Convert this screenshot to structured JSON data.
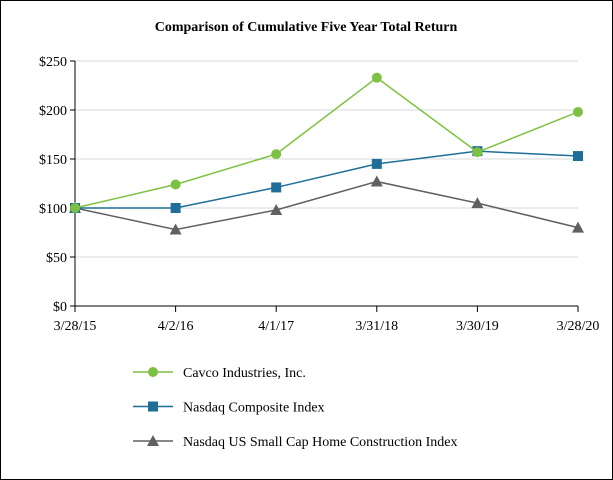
{
  "chart_data": {
    "type": "line",
    "title": "Comparison of Cumulative Five Year Total Return",
    "xlabel": "",
    "ylabel": "",
    "categories": [
      "3/28/15",
      "4/2/16",
      "4/1/17",
      "3/31/18",
      "3/30/19",
      "3/28/20"
    ],
    "ylim": [
      0,
      250
    ],
    "yticks": [
      0,
      50,
      100,
      150,
      200,
      250
    ],
    "ytick_labels": [
      "$0",
      "$50",
      "$100",
      "$150",
      "$200",
      "$250"
    ],
    "grid": "horizontal",
    "legend_position": "bottom",
    "series": [
      {
        "name": "Cavco Industries, Inc.",
        "color": "#7dc142",
        "marker": "circle",
        "values": [
          100,
          124,
          155,
          233,
          157,
          198
        ]
      },
      {
        "name": "Nasdaq Composite Index",
        "color": "#1f6e97",
        "marker": "square",
        "values": [
          100,
          100,
          121,
          145,
          158,
          153
        ]
      },
      {
        "name": "Nasdaq US Small Cap Home Construction Index",
        "color": "#606060",
        "marker": "triangle",
        "values": [
          100,
          78,
          98,
          127,
          105,
          80
        ]
      }
    ]
  }
}
